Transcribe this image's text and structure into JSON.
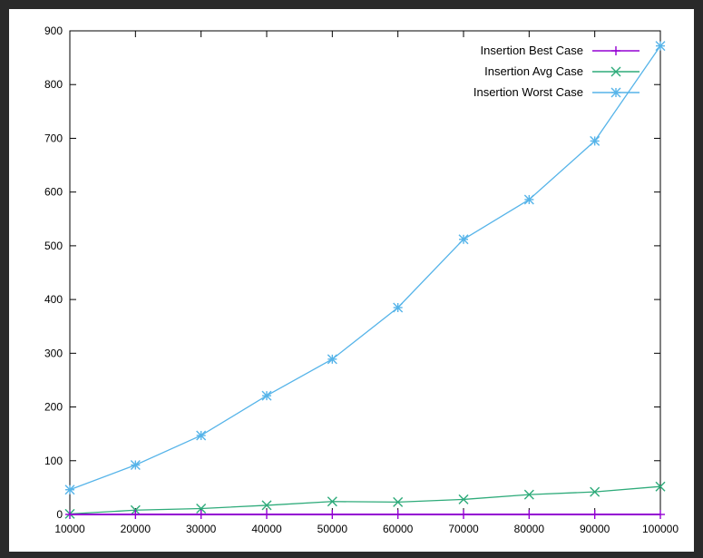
{
  "chart_data": {
    "type": "line",
    "title": "",
    "xlabel": "",
    "ylabel": "",
    "x": [
      10000,
      20000,
      30000,
      40000,
      50000,
      60000,
      70000,
      80000,
      90000,
      100000
    ],
    "xlim": [
      10000,
      100000
    ],
    "ylim": [
      0,
      900
    ],
    "xticks": [
      10000,
      20000,
      30000,
      40000,
      50000,
      60000,
      70000,
      80000,
      90000,
      100000
    ],
    "yticks": [
      0,
      100,
      200,
      300,
      400,
      500,
      600,
      700,
      800,
      900
    ],
    "grid": false,
    "legend_position": "top-right",
    "series": [
      {
        "name": "Insertion Best Case",
        "color": "#9400d3",
        "marker": "plus",
        "values": [
          0,
          0,
          0,
          0,
          0,
          0,
          0,
          0,
          0,
          0
        ]
      },
      {
        "name": "Insertion Avg Case",
        "color": "#2eab7a",
        "marker": "x",
        "values": [
          1,
          8,
          11,
          17,
          24,
          23,
          28,
          37,
          42,
          52
        ]
      },
      {
        "name": "Insertion Worst Case",
        "color": "#56b4e9",
        "marker": "asterisk",
        "values": [
          46,
          92,
          147,
          221,
          289,
          385,
          512,
          586,
          695,
          872
        ]
      }
    ]
  }
}
